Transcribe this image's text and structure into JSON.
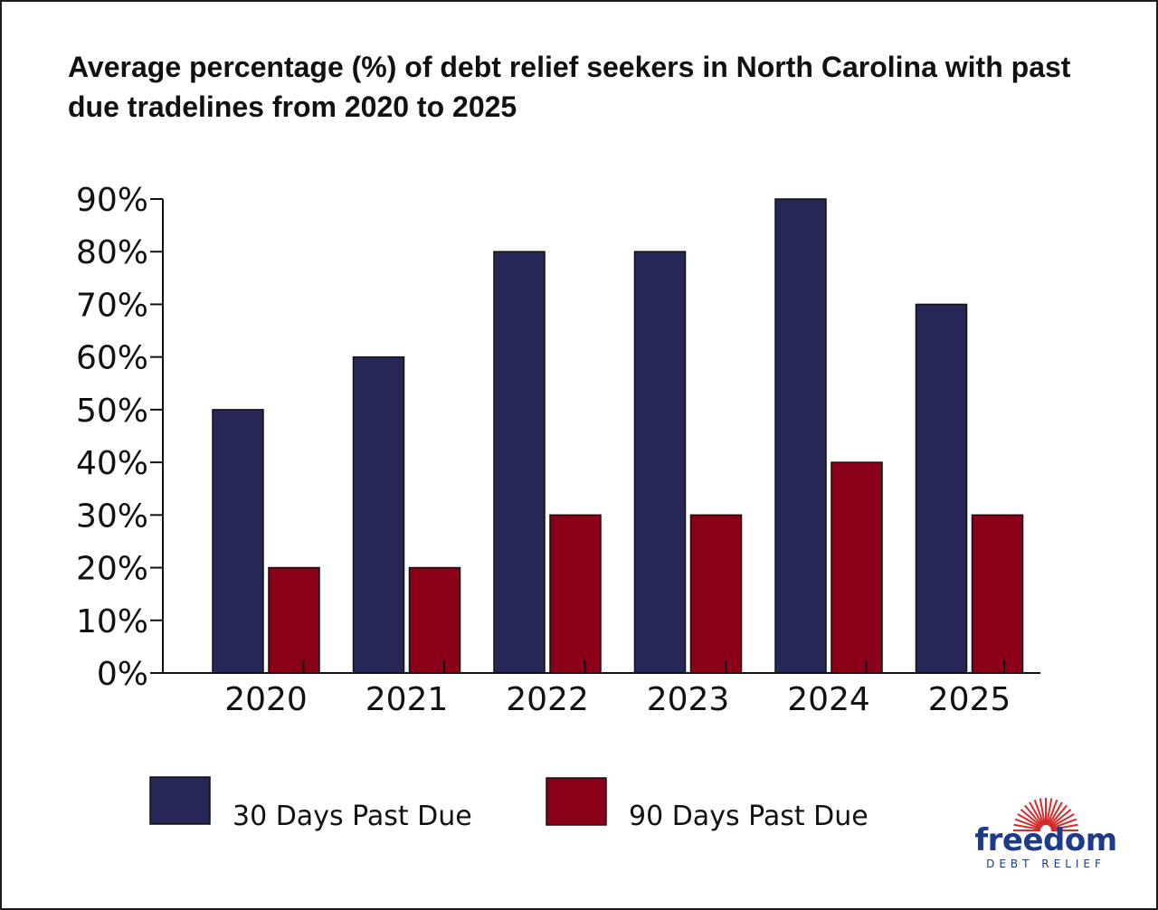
{
  "chart_data": {
    "type": "bar",
    "title": "Average percentage (%) of debt relief seekers in North Carolina with past due tradelines from 2020 to 2025",
    "categories": [
      "2020",
      "2021",
      "2022",
      "2023",
      "2024",
      "2025"
    ],
    "series": [
      {
        "name": "30 Days Past Due",
        "color": "#262757",
        "values": [
          50,
          60,
          80,
          80,
          90,
          70
        ]
      },
      {
        "name": "90 Days Past Due",
        "color": "#8b0019",
        "values": [
          20,
          20,
          30,
          30,
          40,
          30
        ]
      }
    ],
    "ylim": [
      0,
      90
    ],
    "yticks": [
      "0%",
      "10%",
      "20%",
      "30%",
      "40%",
      "50%",
      "60%",
      "70%",
      "80%",
      "90%"
    ],
    "ytick_values": [
      0,
      10,
      20,
      30,
      40,
      50,
      60,
      70,
      80,
      90
    ],
    "xlabel": "",
    "ylabel": "",
    "grid": false,
    "legend_position": "bottom-left"
  },
  "brand": {
    "name": "freedom",
    "tagline": "DEBT RELIEF",
    "primary_color": "#1e3a8a",
    "sun_color": "#d62a2a"
  }
}
